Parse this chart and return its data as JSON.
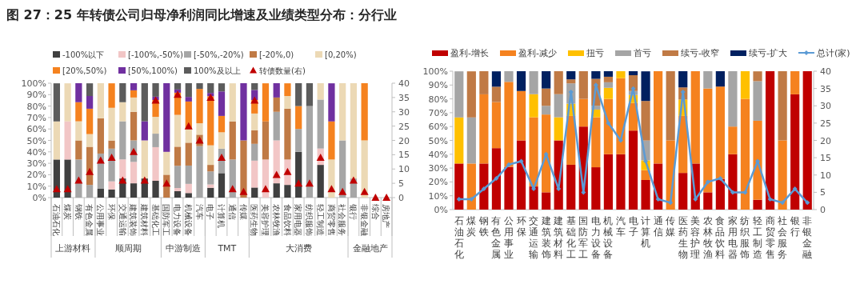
{
  "chart_data": [
    {
      "type": "bar",
      "title": "图 27：25 年转债公司归母净利润同比增速及业绩类型分布：分行业",
      "stacked": true,
      "legend": "top",
      "categories": [
        "石油石化",
        "煤炭",
        "钢铁",
        "有色金属",
        "公用事业",
        "环保",
        "交通运输",
        "建筑装饰",
        "建筑材料",
        "基础化工",
        "国防军工",
        "电力设备",
        "机械设备",
        "汽车",
        "电子",
        "计算机",
        "通信",
        "传媒",
        "医药生物",
        "美容护理",
        "农林牧渔",
        "食品饮料",
        "家用电器",
        "纺织服饰",
        "轻工制造",
        "商贸零售",
        "社会服务",
        "银行",
        "非银金融",
        "综合",
        "房地产"
      ],
      "ylim": [
        0,
        100
      ],
      "yticks": [
        {
          "value": 0,
          "label": "0%"
        },
        {
          "value": 10,
          "label": "10%"
        },
        {
          "value": 20,
          "label": "20%"
        },
        {
          "value": 30,
          "label": "30%"
        },
        {
          "value": 40,
          "label": "40%"
        },
        {
          "value": 50,
          "label": "50%"
        },
        {
          "value": 60,
          "label": "60%"
        },
        {
          "value": 70,
          "label": "70%"
        },
        {
          "value": 80,
          "label": "80%"
        },
        {
          "value": 90,
          "label": "90%"
        },
        {
          "value": 100,
          "label": "100%"
        }
      ],
      "y2lim": [
        0,
        40
      ],
      "y2ticks": [
        0,
        5,
        10,
        15,
        20,
        25,
        30,
        35,
        40
      ],
      "annotations": [
        "上游材料",
        "顺周期",
        "中游制造",
        "TMT",
        "大消费",
        "金融地产"
      ],
      "series": [
        {
          "name": "-100%以下",
          "color": "#404040",
          "values": [
            33.3,
            33.3,
            null,
            null,
            7.7,
            7.1,
            16.7,
            12.5,
            16.7,
            14.7,
            null,
            5.6,
            4,
            null,
            8.6,
            21.4,
            null,
            null,
            8.8,
            null,
            12.5,
            11.1,
            40,
            null,
            28.6,
            null,
            null,
            null,
            null,
            null,
            null
          ]
        },
        {
          "name": "[-100%,-50%)",
          "color": "#f2c6c6",
          "values": [
            null,
            33.3,
            null,
            null,
            null,
            7.1,
            16.7,
            18.7,
            null,
            29.4,
            null,
            2.8,
            8,
            null,
            2.9,
            null,
            null,
            null,
            23.5,
            33.3,
            37.5,
            22.2,
            null,
            null,
            14.3,
            null,
            null,
            null,
            null,
            null,
            null
          ]
        },
        {
          "name": "[-50%,-20%)",
          "color": "#a6a6a6",
          "values": [
            null,
            null,
            33.3,
            11.1,
            30.8,
            28.6,
            33.3,
            18.8,
            null,
            11.8,
            null,
            19.4,
            16,
            45,
            11.4,
            21.4,
            33.3,
            null,
            14.7,
            null,
            25,
            null,
            20,
            80,
            42.8,
            null,
            50,
            16.7,
            null,
            null,
            null
          ]
        },
        {
          "name": "[-20%,0)",
          "color": "#c07a45",
          "values": [
            null,
            null,
            16.7,
            33.3,
            30.8,
            7.1,
            null,
            25,
            null,
            null,
            20,
            16.7,
            20,
            10,
            5.7,
            null,
            33.3,
            50,
            11.8,
            33.3,
            12.5,
            44.4,
            null,
            null,
            null,
            null,
            null,
            null,
            null,
            null,
            null
          ]
        },
        {
          "name": "[0,20%)",
          "color": "#ecd9b5",
          "values": [
            33.3,
            33.3,
            16.7,
            11.1,
            30.7,
            28.6,
            16.7,
            12.5,
            33.3,
            14.7,
            20,
            27.8,
            12,
            10,
            17.1,
            14.3,
            33.3,
            null,
            14.7,
            null,
            null,
            11.1,
            null,
            null,
            14.3,
            33.3,
            50,
            83.3,
            50,
            null,
            null
          ]
        },
        {
          "name": "[20%,50%)",
          "color": "#f5821f",
          "values": [
            null,
            null,
            16.7,
            22.2,
            null,
            21.4,
            null,
            6.3,
            null,
            14.7,
            null,
            19.4,
            24,
            30,
            42.9,
            14.3,
            null,
            null,
            11.8,
            33.3,
            null,
            11.1,
            20,
            null,
            null,
            33.3,
            null,
            null,
            50,
            null,
            null
          ]
        },
        {
          "name": "[50%,100%)",
          "color": "#7030a0",
          "values": [
            null,
            null,
            16.6,
            11.1,
            null,
            null,
            null,
            6.2,
            16.7,
            2.9,
            60,
            2.8,
            4,
            null,
            2.9,
            21.4,
            null,
            50,
            8.8,
            null,
            12.5,
            null,
            null,
            null,
            null,
            33.3,
            null,
            null,
            null,
            null,
            null
          ]
        },
        {
          "name": "100%及以上",
          "color": "#5c5c5c",
          "values": [
            33.3,
            null,
            null,
            11.1,
            null,
            null,
            16.6,
            null,
            33.3,
            11.8,
            null,
            5.5,
            12,
            5,
            8.5,
            7.1,
            null,
            null,
            5.9,
            null,
            null,
            null,
            20,
            20,
            null,
            null,
            null,
            null,
            null,
            null,
            null
          ]
        },
        {
          "name": "转债数量(右)",
          "type": "scatter",
          "axis": "y2",
          "marker": "triangle",
          "color": "#c00000",
          "values": [
            3,
            3,
            6,
            9,
            13,
            14,
            6,
            16,
            6,
            34,
            5,
            36,
            25,
            20,
            35,
            14,
            3,
            2,
            34,
            3,
            8,
            9,
            5,
            5,
            14,
            3,
            2,
            6,
            2,
            0,
            0
          ]
        }
      ]
    },
    {
      "type": "bar",
      "stacked": true,
      "legend": "top",
      "categories": [
        "石油石化",
        "煤炭",
        "钢铁",
        "有色金属",
        "公用事业",
        "环保",
        "交通运输",
        "建筑装饰",
        "建筑材料",
        "基础化工",
        "国防军工",
        "电力设备",
        "机械设备",
        "汽车",
        "电子",
        "计算机",
        "通信",
        "传媒",
        "医药生物",
        "美容护理",
        "农林牧渔",
        "食品饮料",
        "家用电器",
        "纺织服饰",
        "轻工制造",
        "商贸零售",
        "社会服务",
        "银行",
        "非银金融"
      ],
      "ylim": [
        0,
        100
      ],
      "yticks": [
        {
          "value": 0,
          "label": "0%"
        },
        {
          "value": 10,
          "label": "10%"
        },
        {
          "value": 20,
          "label": "20%"
        },
        {
          "value": 30,
          "label": "30%"
        },
        {
          "value": 40,
          "label": "40%"
        },
        {
          "value": 50,
          "label": "50%"
        },
        {
          "value": 60,
          "label": "60%"
        },
        {
          "value": 70,
          "label": "70%"
        },
        {
          "value": 80,
          "label": "80%"
        },
        {
          "value": 90,
          "label": "90%"
        },
        {
          "value": 100,
          "label": "100%"
        }
      ],
      "y2lim": [
        0,
        40
      ],
      "y2ticks": [
        0,
        5,
        10,
        15,
        20,
        25,
        30,
        35,
        40
      ],
      "series": [
        {
          "name": "盈利-增长",
          "color": "#c00000",
          "values": [
            33.3,
            null,
            33.3,
            44.4,
            30.8,
            50,
            16.7,
            12.5,
            50,
            32.4,
            60,
            30.6,
            40,
            40,
            57.1,
            21.4,
            33.3,
            null,
            26.5,
            33.3,
            12.5,
            22.2,
            40,
            null,
            7.1,
            100,
            null,
            83.3,
            100
          ]
        },
        {
          "name": "盈利-减少",
          "color": "#f5821f",
          "values": [
            null,
            33.3,
            50,
            33.3,
            61.5,
            35.7,
            50,
            56.2,
            null,
            35.3,
            20,
            36.1,
            40,
            55,
            20,
            7.1,
            66.7,
            50,
            41.2,
            66.7,
            75,
            66.7,
            20,
            80,
            57.1,
            null,
            50,
            16.7,
            null
          ]
        },
        {
          "name": "扭亏",
          "color": "#ffc000",
          "values": [
            33.3,
            null,
            null,
            null,
            null,
            null,
            16.7,
            null,
            16.7,
            8.8,
            null,
            5.6,
            8,
            5,
            5.7,
            7.1,
            null,
            null,
            11.8,
            null,
            null,
            null,
            null,
            20,
            null,
            null,
            null,
            null,
            null
          ]
        },
        {
          "name": "首亏",
          "color": "#a5a5a5",
          "values": [
            33.3,
            33.3,
            null,
            null,
            7.7,
            null,
            16.6,
            6.3,
            16.7,
            14.7,
            null,
            2.8,
            4,
            null,
            2.9,
            14.3,
            null,
            null,
            null,
            null,
            12.5,
            null,
            40,
            null,
            28.6,
            null,
            null,
            null,
            null
          ]
        },
        {
          "name": "续亏-收窄",
          "color": "#c07a45",
          "values": [
            null,
            33.3,
            16.7,
            11.1,
            null,
            null,
            null,
            12.5,
            16.6,
            2.9,
            20,
            19.4,
            4,
            null,
            11.4,
            28.6,
            null,
            50,
            8.8,
            null,
            null,
            null,
            null,
            null,
            7.1,
            null,
            50,
            null,
            null
          ]
        },
        {
          "name": "续亏-扩大",
          "color": "#002060",
          "values": [
            null,
            null,
            null,
            11.1,
            null,
            14.3,
            null,
            12.5,
            null,
            5.9,
            null,
            5.5,
            4,
            null,
            2.9,
            21.4,
            null,
            null,
            11.7,
            null,
            null,
            11.1,
            null,
            null,
            null,
            null,
            null,
            null,
            null
          ]
        },
        {
          "name": "总计(家)",
          "type": "line",
          "axis": "y2",
          "marker": "diamond",
          "color": "#5b9bd5",
          "values": [
            3,
            3,
            6,
            9,
            13,
            14,
            6,
            16,
            6,
            34,
            5,
            36,
            25,
            20,
            35,
            14,
            3,
            2,
            34,
            3,
            8,
            9,
            5,
            5,
            14,
            3,
            2,
            6,
            2
          ]
        }
      ]
    }
  ]
}
